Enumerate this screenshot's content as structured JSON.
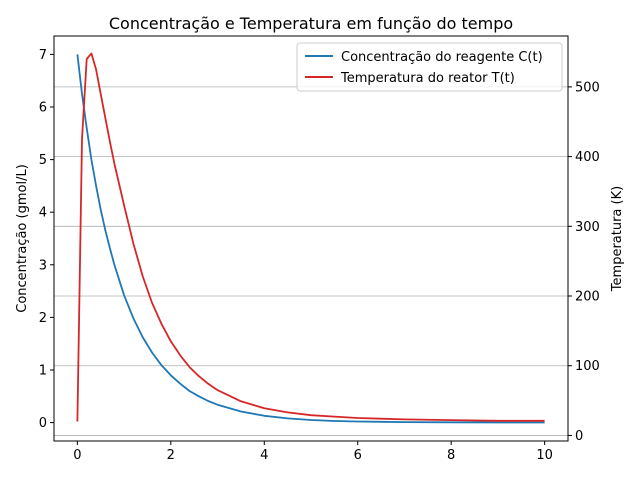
{
  "chart_data": {
    "type": "line",
    "title": "Concentração e Temperatura em função do tempo",
    "xlabel": "",
    "ylabel_left": "Concentração (gmol/L)",
    "ylabel_right": "Temperatura (K)",
    "xlim": [
      -0.5,
      10.5
    ],
    "ylim_left": [
      -0.35,
      7.35
    ],
    "ylim_right": [
      -8,
      573
    ],
    "x_ticks": [
      0,
      2,
      4,
      6,
      8,
      10
    ],
    "y_left_ticks": [
      0,
      1,
      2,
      3,
      4,
      5,
      6,
      7
    ],
    "y_right_ticks": [
      0,
      100,
      200,
      300,
      400,
      500
    ],
    "grid": "horizontal lines at right-axis ticks",
    "legend_position": "top-right",
    "x": [
      0,
      0.1,
      0.2,
      0.3,
      0.4,
      0.5,
      0.6,
      0.7,
      0.8,
      1.0,
      1.2,
      1.4,
      1.6,
      1.8,
      2.0,
      2.2,
      2.4,
      2.6,
      2.8,
      3.0,
      3.5,
      4.0,
      4.5,
      5.0,
      5.5,
      6.0,
      6.5,
      7.0,
      8.0,
      9.0,
      10.0
    ],
    "series": [
      {
        "name": "Concentração do reagente C(t)",
        "axis": "left",
        "color": "#1f77b4",
        "values": [
          7.0,
          6.25,
          5.6,
          5.0,
          4.5,
          4.05,
          3.65,
          3.3,
          2.98,
          2.42,
          1.98,
          1.62,
          1.33,
          1.09,
          0.9,
          0.74,
          0.6,
          0.5,
          0.41,
          0.34,
          0.21,
          0.13,
          0.08,
          0.05,
          0.03,
          0.02,
          0.015,
          0.01,
          0.005,
          0.002,
          0.001
        ]
      },
      {
        "name": "Temperatura do reator T(t)",
        "axis": "right",
        "color": "#d62728",
        "values": [
          20,
          425,
          540,
          548,
          525,
          490,
          455,
          420,
          388,
          330,
          275,
          228,
          190,
          160,
          135,
          115,
          98,
          85,
          74,
          65,
          49,
          39,
          33,
          29,
          27,
          25,
          24,
          23,
          22,
          21,
          21
        ]
      }
    ]
  }
}
